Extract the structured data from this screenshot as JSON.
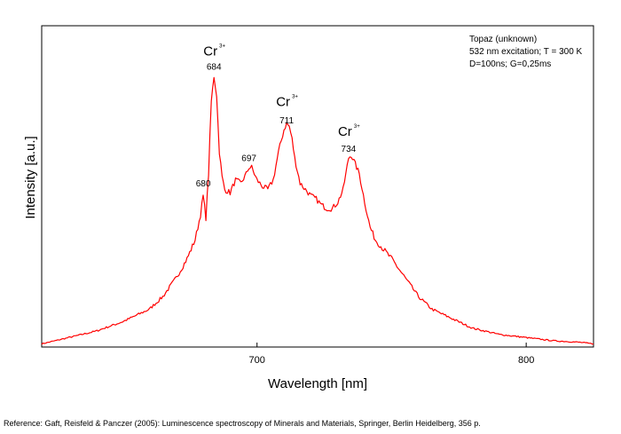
{
  "chart_data": {
    "type": "line",
    "xlabel": "Wavelength [nm]",
    "ylabel": "Intensity [a.u.]",
    "xlim": [
      620,
      825
    ],
    "ylim": [
      0,
      1.02
    ],
    "x_ticks": [
      700,
      800
    ],
    "x_tick_labels": [
      "700",
      "800"
    ],
    "y_tick_labels_shown": false,
    "grid": false,
    "legend": "none",
    "line_color": "#ff0000",
    "info_box": {
      "placement": "top-right",
      "lines": [
        "Topaz (unknown)",
        "532 nm excitation; T = 300 K",
        "D=100ns; G=0,25ms"
      ]
    },
    "peak_labels": [
      {
        "x": 680,
        "y": 0.51,
        "text": "680"
      },
      {
        "x": 684,
        "y": 0.88,
        "text": "684"
      },
      {
        "x": 697,
        "y": 0.59,
        "text": "697"
      },
      {
        "x": 711,
        "y": 0.71,
        "text": "711"
      },
      {
        "x": 734,
        "y": 0.62,
        "text": "734"
      }
    ],
    "ion_labels": [
      {
        "x": 684,
        "y": 0.925,
        "base": "Cr",
        "sup": "3+"
      },
      {
        "x": 711,
        "y": 0.765,
        "base": "Cr",
        "sup": "3+"
      },
      {
        "x": 734,
        "y": 0.67,
        "base": "Cr",
        "sup": "3+"
      }
    ],
    "series": [
      {
        "x": [
          620,
          630,
          640,
          650,
          660,
          665,
          670,
          674,
          677,
          679,
          680,
          681,
          682,
          683,
          684,
          685,
          686,
          687,
          688,
          690,
          692,
          694,
          696,
          697,
          698,
          699,
          700,
          702,
          704,
          706,
          708,
          710,
          711,
          712,
          713,
          714,
          716,
          718,
          720,
          722,
          724,
          726,
          728,
          730,
          732,
          734,
          735,
          736,
          738,
          740,
          742,
          744,
          746,
          750,
          755,
          760,
          765,
          770,
          775,
          780,
          790,
          800,
          810,
          820,
          825
        ],
        "y": [
          0.01,
          0.03,
          0.05,
          0.08,
          0.12,
          0.16,
          0.22,
          0.28,
          0.34,
          0.42,
          0.48,
          0.41,
          0.55,
          0.78,
          0.86,
          0.8,
          0.62,
          0.54,
          0.5,
          0.49,
          0.53,
          0.52,
          0.55,
          0.57,
          0.57,
          0.55,
          0.53,
          0.51,
          0.5,
          0.53,
          0.62,
          0.69,
          0.71,
          0.7,
          0.66,
          0.6,
          0.52,
          0.5,
          0.48,
          0.47,
          0.45,
          0.44,
          0.44,
          0.46,
          0.5,
          0.6,
          0.61,
          0.59,
          0.55,
          0.46,
          0.38,
          0.34,
          0.32,
          0.28,
          0.22,
          0.16,
          0.12,
          0.1,
          0.08,
          0.06,
          0.04,
          0.03,
          0.02,
          0.015,
          0.01
        ]
      }
    ]
  },
  "reference": "Reference: Gaft, Reisfeld & Panczer (2005): Luminescence spectroscopy of Minerals and Materials, Springer, Berlin Heidelberg, 356 p."
}
